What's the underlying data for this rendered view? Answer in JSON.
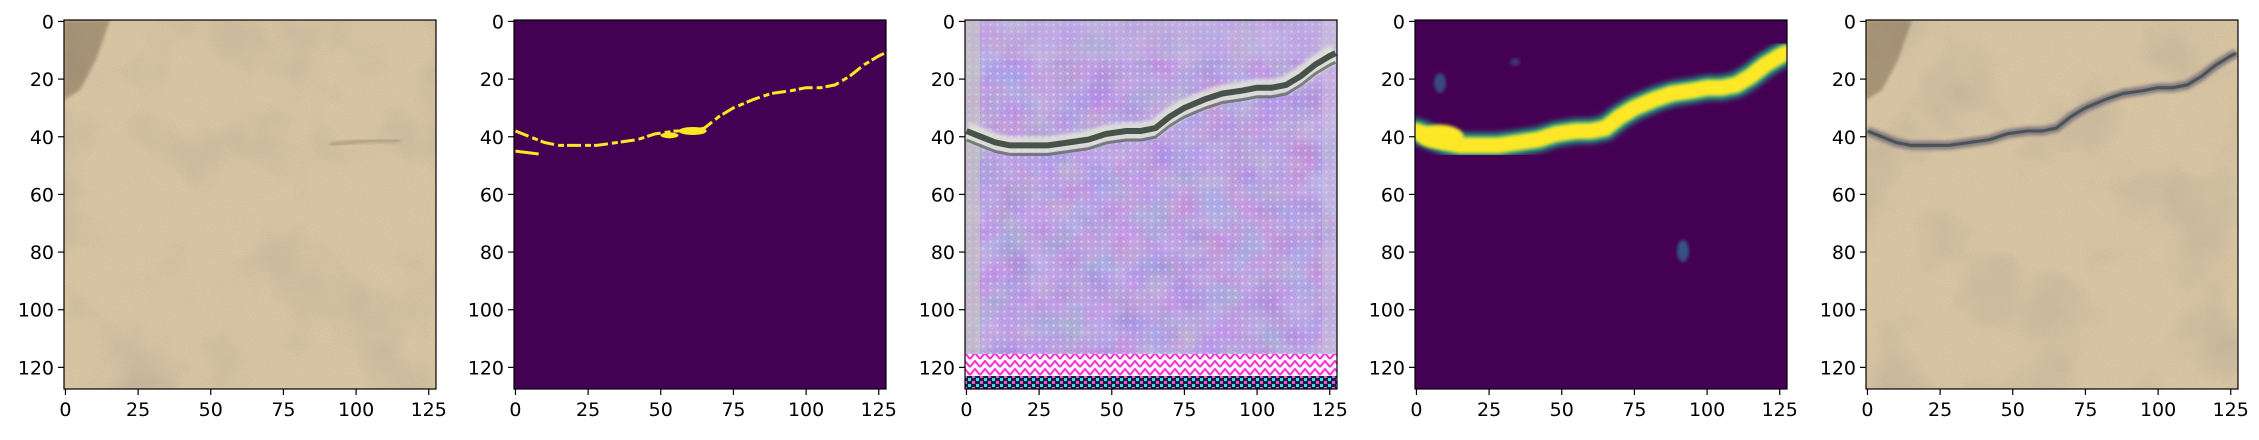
{
  "figure": {
    "panel_count": 5,
    "axes": {
      "x_ticks": [
        0,
        25,
        50,
        75,
        100,
        125
      ],
      "y_ticks": [
        0,
        20,
        40,
        60,
        80,
        100,
        120
      ],
      "x_range": [
        -0.5,
        127.5
      ],
      "y_range": [
        -0.5,
        127.5
      ],
      "y_inverted": true
    },
    "panels": [
      {
        "content": "sand texture photograph",
        "style": "photo"
      },
      {
        "content": "binary crack mask",
        "style": "mask"
      },
      {
        "content": "generated crack texture with artifacts",
        "style": "generated"
      },
      {
        "content": "predicted crack probability map",
        "style": "heatmap"
      },
      {
        "content": "sand texture with overlaid crack",
        "style": "overlay"
      }
    ],
    "colors": {
      "viridis_dark": "#440154",
      "viridis_yellow": "#fde725",
      "viridis_green": "#21a685",
      "sand": "#d6c3a0",
      "generated_purple": "#9a7ad6"
    }
  }
}
